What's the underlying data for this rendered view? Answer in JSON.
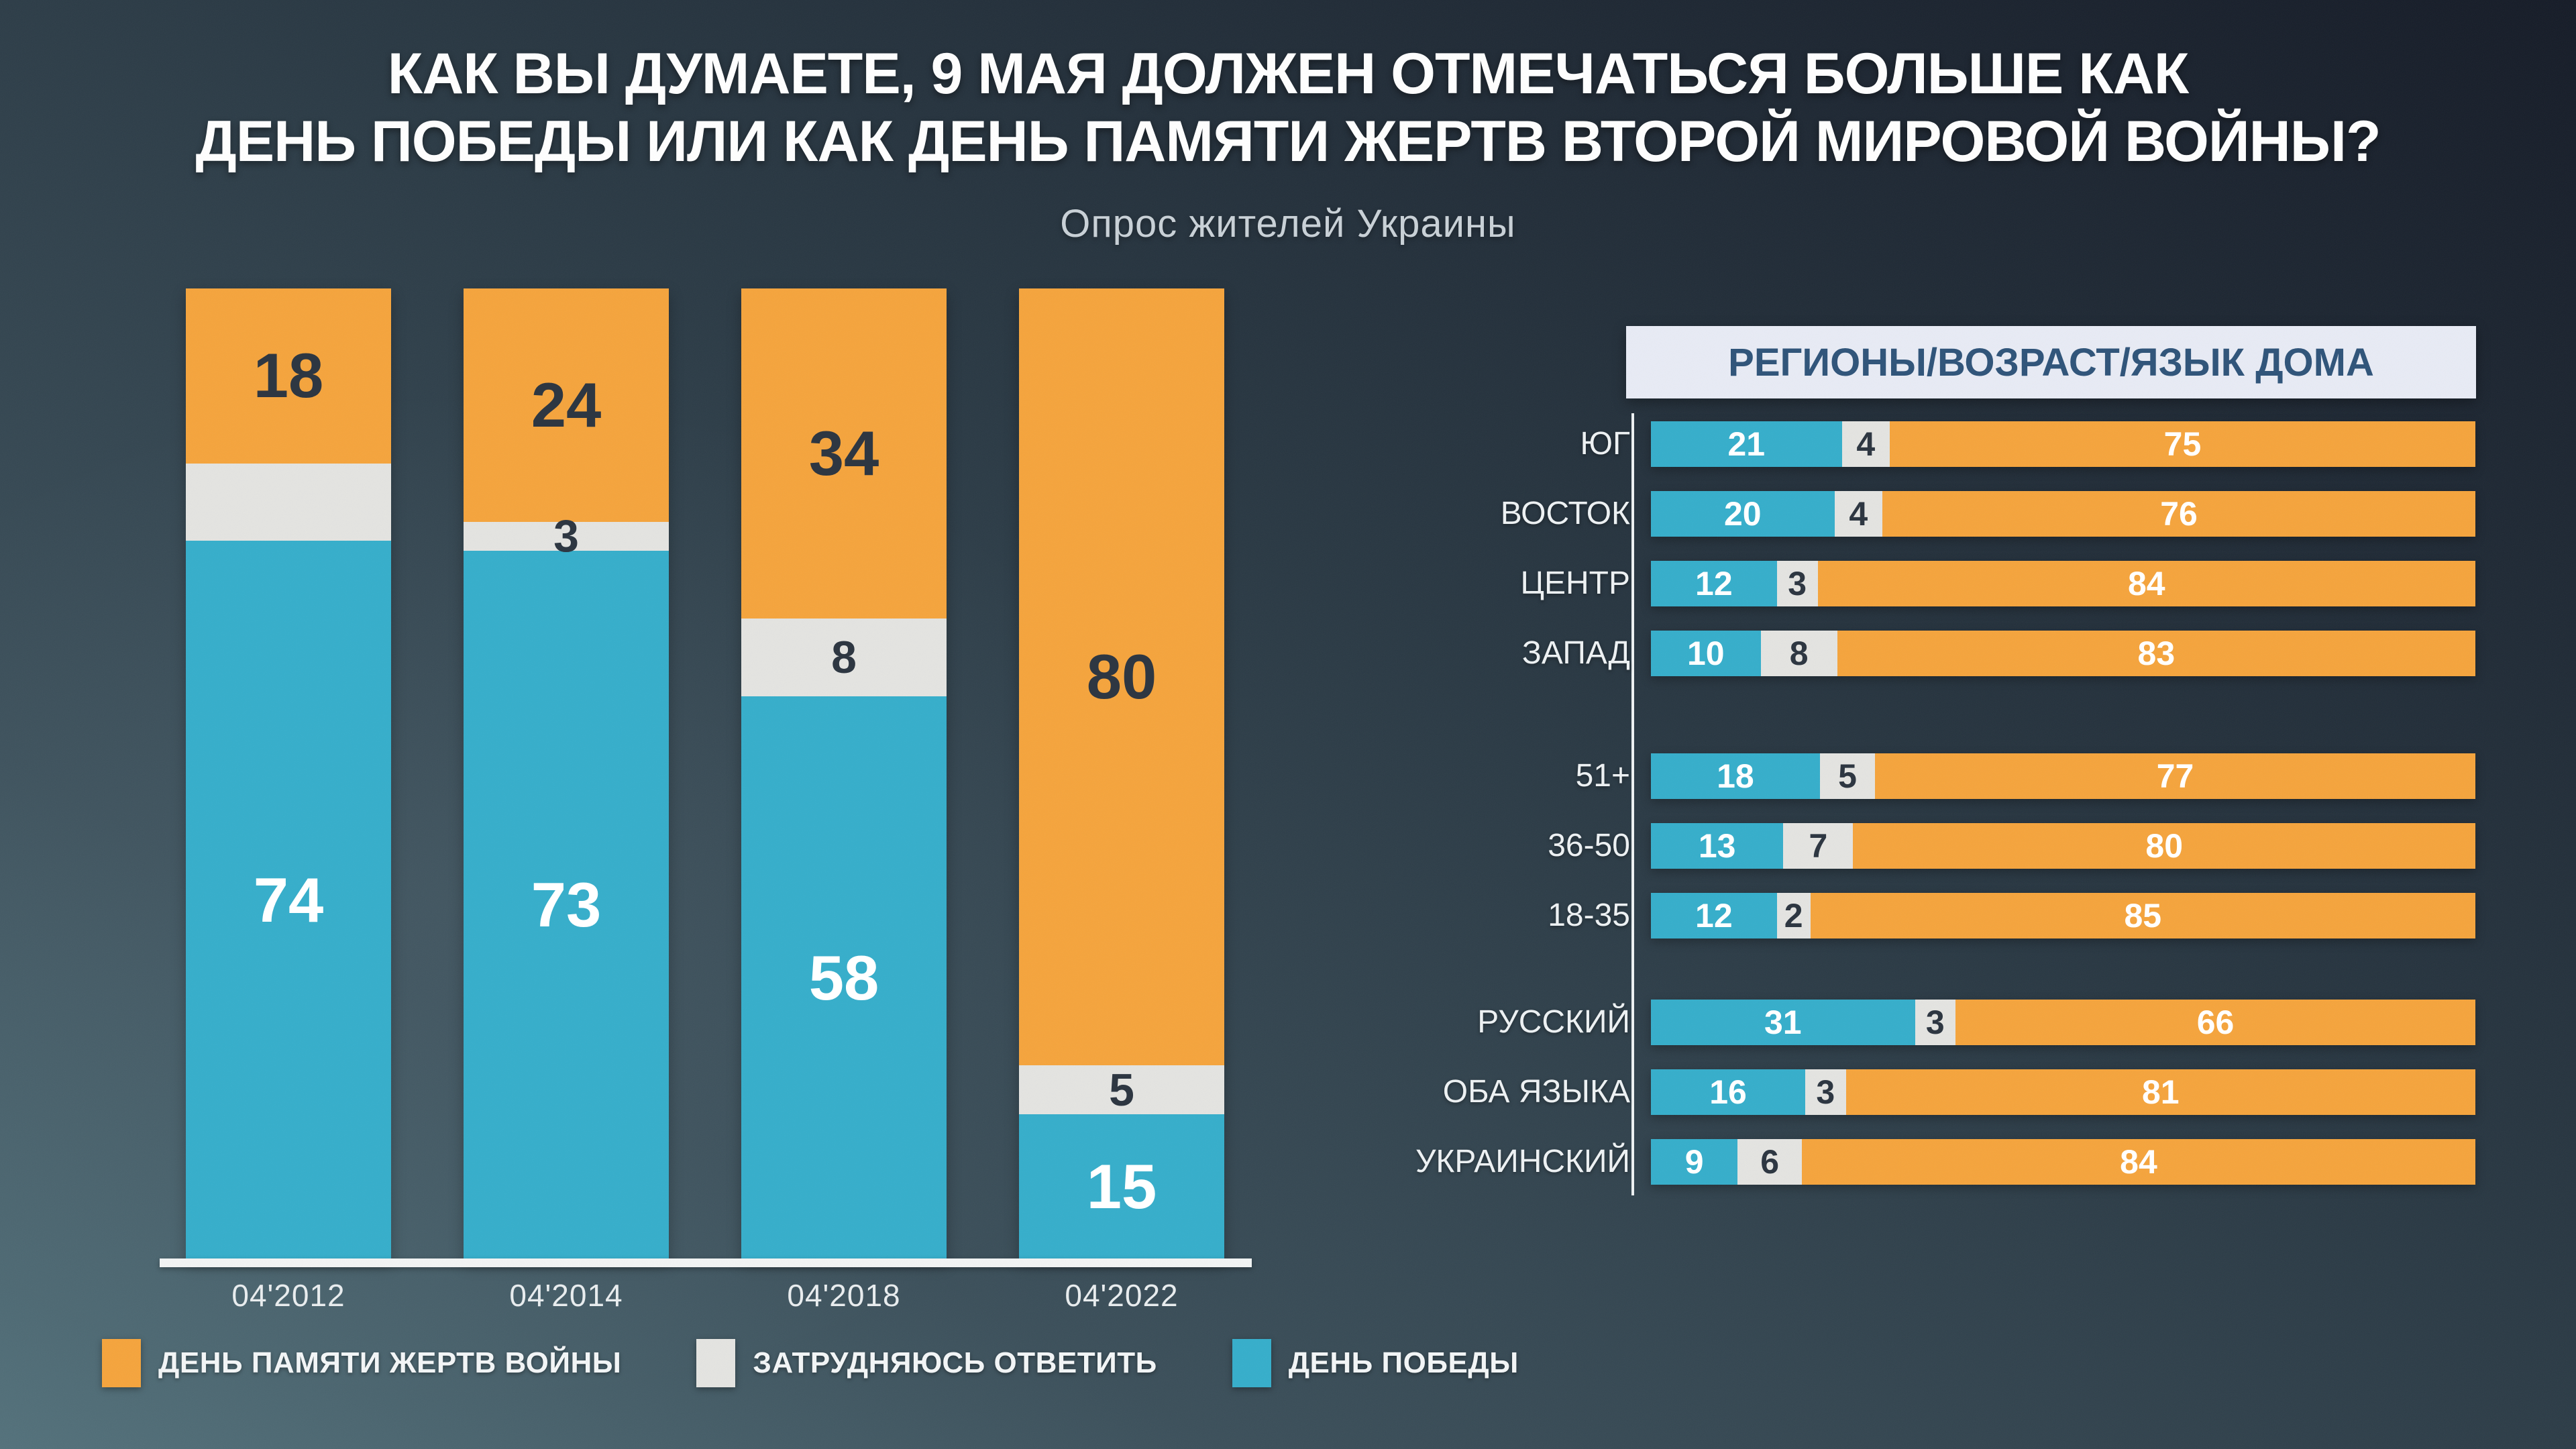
{
  "title": {
    "line1": "КАК ВЫ ДУМАЕТЕ, 9 МАЯ ДОЛЖЕН ОТМЕЧАТЬСЯ БОЛЬШЕ КАК",
    "line2": "ДЕНЬ ПОБЕДЫ ИЛИ КАК ДЕНЬ ПАМЯТИ ЖЕРТВ ВТОРОЙ МИРОВОЙ ВОЙНЫ?"
  },
  "subtitle": "Опрос жителей Украины",
  "colors": {
    "orange": "#F5A43C",
    "blue": "#35AECB",
    "gray": "#E4E4E1",
    "dark_text": "#2E3742",
    "header_bg": "#E8EBF5",
    "header_text": "#2E5379",
    "baseline": "#F2F4F4"
  },
  "legend": {
    "items": [
      {
        "label": "ДЕНЬ ПАМЯТИ ЖЕРТВ ВОЙНЫ",
        "color_key": "orange"
      },
      {
        "label": "ЗАТРУДНЯЮСЬ ОТВЕТИТЬ",
        "color_key": "gray"
      },
      {
        "label": "ДЕНЬ ПОБЕДЫ",
        "color_key": "blue"
      }
    ]
  },
  "chart_data": [
    {
      "type": "bar",
      "variant": "stacked-column",
      "categories": [
        "04'2012",
        "04'2014",
        "04'2018",
        "04'2022"
      ],
      "ylim": [
        0,
        100
      ],
      "series": [
        {
          "name": "ДЕНЬ ПАМЯТИ ЖЕРТВ ВОЙНЫ",
          "color_key": "orange",
          "values": [
            18,
            24,
            34,
            80
          ]
        },
        {
          "name": "ЗАТРУДНЯЮСЬ ОТВЕТИТЬ",
          "color_key": "gray",
          "values": [
            null,
            3,
            8,
            5
          ]
        },
        {
          "name": "ДЕНЬ ПОБЕДЫ",
          "color_key": "blue",
          "values": [
            74,
            73,
            58,
            15
          ]
        }
      ]
    },
    {
      "type": "bar",
      "variant": "stacked-horizontal",
      "title": "РЕГИОНЫ/ВОЗРАСТ/ЯЗЫК ДОМА",
      "xlim": [
        0,
        100
      ],
      "series": [
        {
          "name": "ДЕНЬ ПОБЕДЫ",
          "color_key": "blue"
        },
        {
          "name": "ЗАТРУДНЯЮСЬ ОТВЕТИТЬ",
          "color_key": "gray"
        },
        {
          "name": "ДЕНЬ ПАМЯТИ ЖЕРТВ ВОЙНЫ",
          "color_key": "orange"
        }
      ],
      "groups": [
        {
          "name": "regions",
          "rows": [
            {
              "label": "ЮГ",
              "values": [
                21,
                4,
                75
              ]
            },
            {
              "label": "ВОСТОК",
              "values": [
                20,
                4,
                76
              ]
            },
            {
              "label": "ЦЕНТР",
              "values": [
                12,
                3,
                84
              ]
            },
            {
              "label": "ЗАПАД",
              "values": [
                10,
                8,
                83
              ]
            }
          ]
        },
        {
          "name": "age",
          "rows": [
            {
              "label": "51+",
              "values": [
                18,
                5,
                77
              ]
            },
            {
              "label": "36-50",
              "values": [
                13,
                7,
                80
              ]
            },
            {
              "label": "18-35",
              "values": [
                12,
                2,
                85
              ]
            }
          ]
        },
        {
          "name": "language",
          "rows": [
            {
              "label": "РУССКИЙ",
              "values": [
                31,
                3,
                66
              ]
            },
            {
              "label": "ОБА ЯЗЫКА",
              "values": [
                16,
                3,
                81
              ]
            },
            {
              "label": "УКРАИНСКИЙ",
              "values": [
                9,
                6,
                84
              ]
            }
          ]
        }
      ]
    }
  ]
}
